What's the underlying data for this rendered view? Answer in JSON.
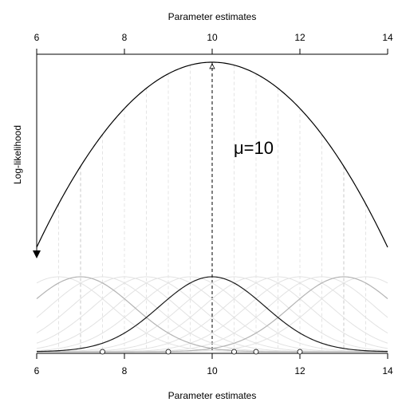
{
  "chart_data": {
    "type": "line",
    "top_xlabel": "Parameter estimates",
    "bottom_xlabel": "Parameter estimates",
    "ylabel": "Log-likelihood",
    "annotation": "μ=10",
    "xlim": [
      6,
      14
    ],
    "xticks": [
      6,
      8,
      10,
      12,
      14
    ],
    "mle": 10,
    "sigma": 1.2,
    "observations": [
      7.5,
      9,
      10.5,
      11,
      12
    ],
    "candidate_means": [
      6.5,
      7,
      7.5,
      8,
      8.5,
      9,
      9.5,
      10,
      10.5,
      11,
      11.5,
      12,
      12.5,
      13,
      13.5
    ],
    "highlighted_means": [
      7,
      13
    ],
    "series": [
      {
        "name": "",
        "x": [
          6,
          7,
          8,
          9,
          10,
          11,
          12,
          13,
          14
        ],
        "y": [
          -8.12,
          -4.57,
          -2.03,
          -0.51,
          0.0,
          -0.51,
          -2.03,
          -4.57,
          -8.12
        ]
      }
    ],
    "colors": {
      "likelihood": "#000000",
      "best_density": "#1a1a1a",
      "highlight_density": "#b3b3b3",
      "other_density": "#e2e2e2",
      "guide": "#c8c8c8"
    }
  }
}
